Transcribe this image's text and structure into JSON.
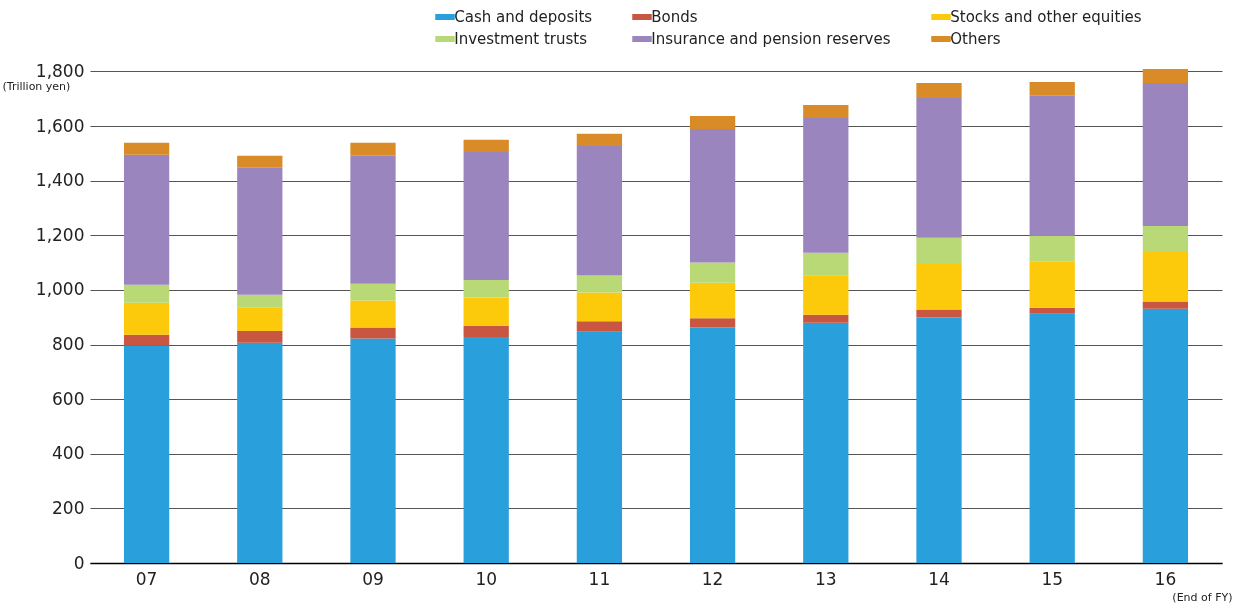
{
  "chart_data": {
    "type": "bar",
    "stacked": true,
    "xlabel": "(End of FY)",
    "ylabel": "(Trillion yen)",
    "categories": [
      "07",
      "08",
      "09",
      "10",
      "11",
      "12",
      "13",
      "14",
      "15",
      "16"
    ],
    "series": [
      {
        "name": "Cash and deposits",
        "color": "#29a0db",
        "values": [
          796,
          807,
          822,
          828,
          847,
          862,
          880,
          899,
          913,
          931
        ]
      },
      {
        "name": "Bonds",
        "color": "#c95641",
        "values": [
          40,
          43,
          40,
          41,
          38,
          34,
          29,
          29,
          22,
          27
        ]
      },
      {
        "name": "Stocks and other equities",
        "color": "#fdc90b",
        "values": [
          117,
          85,
          99,
          103,
          106,
          130,
          145,
          167,
          168,
          181
        ]
      },
      {
        "name": "Investment trusts",
        "color": "#b9d876",
        "values": [
          66,
          47,
          62,
          64,
          62,
          74,
          82,
          96,
          96,
          95
        ]
      },
      {
        "name": "Insurance and pension reserves",
        "color": "#9b85be",
        "values": [
          476,
          465,
          468,
          469,
          474,
          489,
          494,
          512,
          512,
          524
        ]
      },
      {
        "name": "Others",
        "color": "#d98b27",
        "values": [
          44,
          44,
          48,
          45,
          45,
          48,
          47,
          55,
          50,
          51
        ]
      }
    ],
    "ylim": [
      0,
      1820
    ],
    "yticks": [
      0,
      200,
      400,
      600,
      800,
      {
        "value": 1000,
        "label": "1,000"
      },
      {
        "value": 1200,
        "label": "1,200"
      },
      {
        "value": 1400,
        "label": "1,400"
      },
      {
        "value": 1600,
        "label": "1,600"
      },
      {
        "value": 1800,
        "label": "1,800"
      }
    ],
    "grid": "y",
    "legend": "top right"
  }
}
